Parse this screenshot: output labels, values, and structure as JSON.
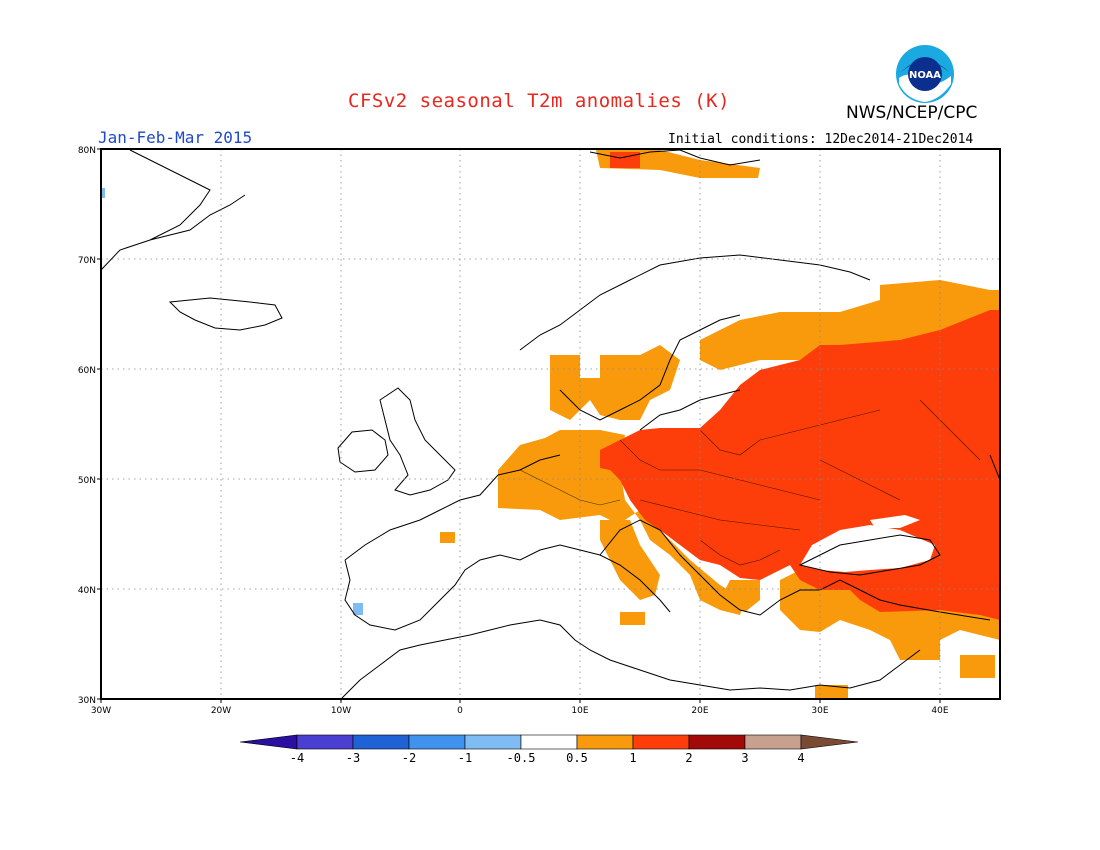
{
  "header": {
    "title": "CFSv2 seasonal T2m anomalies (K)",
    "agency": "NWS/NCEP/CPC",
    "logo_text": "NOAA",
    "period": "Jan-Feb-Mar 2015",
    "init_conditions": "Initial conditions: 12Dec2014-21Dec2014"
  },
  "map": {
    "lat_labels": [
      "80N",
      "70N",
      "60N",
      "50N",
      "40N",
      "30N"
    ],
    "lon_labels": [
      "30W",
      "20W",
      "10W",
      "0",
      "10E",
      "20E",
      "30E",
      "40E"
    ]
  },
  "colorbar": {
    "labels": [
      "-4",
      "-3",
      "-2",
      "-1",
      "-0.5",
      "0.5",
      "1",
      "2",
      "3",
      "4"
    ],
    "colors": [
      "#2a0fa0",
      "#4a3fd0",
      "#1f62d6",
      "#3f92ee",
      "#7fbcf3",
      "#ffffff",
      "#f89a0b",
      "#fd3e0a",
      "#a20a0a",
      "#c8a090",
      "#7a4a33"
    ]
  },
  "anomaly_colors": {
    "warm_0.5_1": "#f89a0b",
    "warm_1_2": "#fd3e0a",
    "cool_-1_-0.5": "#7fbcf3"
  }
}
